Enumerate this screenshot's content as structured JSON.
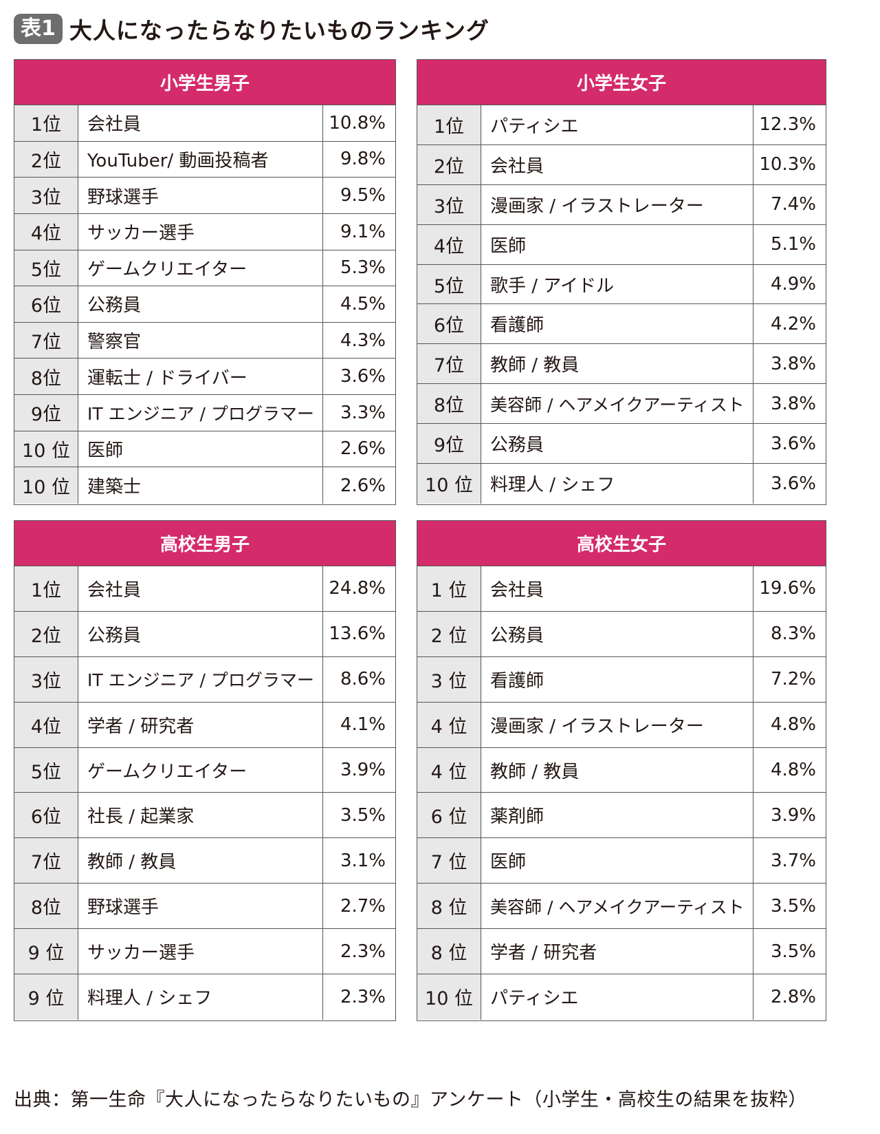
{
  "header": {
    "badge": "表1",
    "title": "大人になったらなりたいものランキング"
  },
  "tables": [
    {
      "title": "小学生男子",
      "rows": [
        {
          "rank": "1位",
          "job": "会社員",
          "pct": "10.8%"
        },
        {
          "rank": "2位",
          "job": "YouTuber/ 動画投稿者",
          "pct": "9.8%"
        },
        {
          "rank": "3位",
          "job": "野球選手",
          "pct": "9.5%"
        },
        {
          "rank": "4位",
          "job": "サッカー選手",
          "pct": "9.1%"
        },
        {
          "rank": "5位",
          "job": "ゲームクリエイター",
          "pct": "5.3%"
        },
        {
          "rank": "6位",
          "job": "公務員",
          "pct": "4.5%"
        },
        {
          "rank": "7位",
          "job": "警察官",
          "pct": "4.3%"
        },
        {
          "rank": "8位",
          "job": "運転士 / ドライバー",
          "pct": "3.6%"
        },
        {
          "rank": "9位",
          "job": "IT エンジニア / プログラマー",
          "pct": "3.3%"
        },
        {
          "rank": "10 位",
          "job": "医師",
          "pct": "2.6%"
        },
        {
          "rank": "10 位",
          "job": "建築士",
          "pct": "2.6%"
        }
      ]
    },
    {
      "title": "小学生女子",
      "rows": [
        {
          "rank": "1位",
          "job": "パティシエ",
          "pct": "12.3%"
        },
        {
          "rank": "2位",
          "job": "会社員",
          "pct": "10.3%"
        },
        {
          "rank": "3位",
          "job": "漫画家 / イラストレーター",
          "pct": "7.4%"
        },
        {
          "rank": "4位",
          "job": "医師",
          "pct": "5.1%"
        },
        {
          "rank": "5位",
          "job": "歌手 / アイドル",
          "pct": "4.9%"
        },
        {
          "rank": "6位",
          "job": "看護師",
          "pct": "4.2%"
        },
        {
          "rank": "7位",
          "job": "教師 / 教員",
          "pct": "3.8%"
        },
        {
          "rank": "8位",
          "job": "美容師 / ヘアメイクアーティスト",
          "pct": "3.8%"
        },
        {
          "rank": "9位",
          "job": "公務員",
          "pct": "3.6%"
        },
        {
          "rank": "10 位",
          "job": "料理人 / シェフ",
          "pct": "3.6%"
        }
      ]
    },
    {
      "title": "高校生男子",
      "rows": [
        {
          "rank": "1位",
          "job": "会社員",
          "pct": "24.8%"
        },
        {
          "rank": "2位",
          "job": "公務員",
          "pct": "13.6%"
        },
        {
          "rank": "3位",
          "job": "IT エンジニア / プログラマー",
          "pct": "8.6%"
        },
        {
          "rank": "4位",
          "job": "学者 / 研究者",
          "pct": "4.1%"
        },
        {
          "rank": "5位",
          "job": "ゲームクリエイター",
          "pct": "3.9%"
        },
        {
          "rank": "6位",
          "job": "社長 / 起業家",
          "pct": "3.5%"
        },
        {
          "rank": "7位",
          "job": "教師 / 教員",
          "pct": "3.1%"
        },
        {
          "rank": "8位",
          "job": "野球選手",
          "pct": "2.7%"
        },
        {
          "rank": "9 位",
          "job": "サッカー選手",
          "pct": "2.3%"
        },
        {
          "rank": "9 位",
          "job": "料理人 / シェフ",
          "pct": "2.3%"
        }
      ]
    },
    {
      "title": "高校生女子",
      "rows": [
        {
          "rank": "1 位",
          "job": "会社員",
          "pct": "19.6%"
        },
        {
          "rank": "2 位",
          "job": "公務員",
          "pct": "8.3%"
        },
        {
          "rank": "3 位",
          "job": "看護師",
          "pct": "7.2%"
        },
        {
          "rank": "4 位",
          "job": "漫画家 / イラストレーター",
          "pct": "4.8%"
        },
        {
          "rank": "4 位",
          "job": "教師 / 教員",
          "pct": "4.8%"
        },
        {
          "rank": "6 位",
          "job": "薬剤師",
          "pct": "3.9%"
        },
        {
          "rank": "7 位",
          "job": "医師",
          "pct": "3.7%"
        },
        {
          "rank": "8 位",
          "job": "美容師 / ヘアメイクアーティスト",
          "pct": "3.5%"
        },
        {
          "rank": "8 位",
          "job": "学者 / 研究者",
          "pct": "3.5%"
        },
        {
          "rank": "10 位",
          "job": "パティシエ",
          "pct": "2.8%"
        }
      ]
    }
  ],
  "footer": "出典：第一生命『大人になったらなりたいもの』アンケート（小学生・高校生の結果を抜粋）",
  "colors": {
    "header_bg": "#d42b6b",
    "rank_bg": "#e8e8e9",
    "border": "#555555",
    "badge_bg": "#6e6e6e"
  }
}
